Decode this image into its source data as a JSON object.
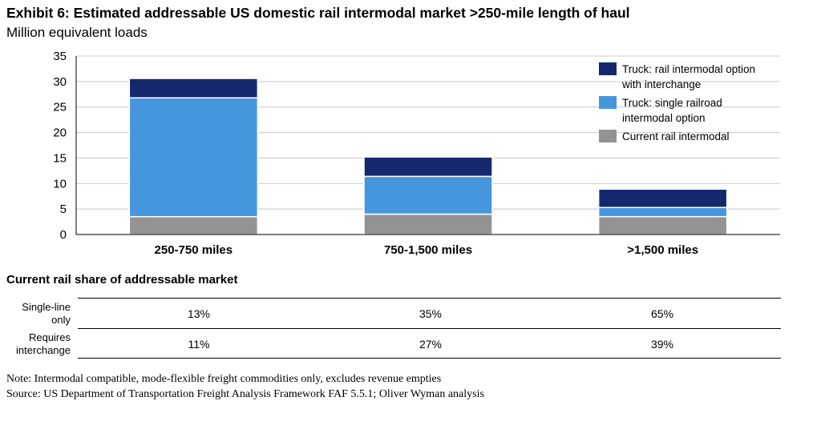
{
  "title": "Exhibit 6: Estimated addressable US domestic rail intermodal market >250-mile length of haul",
  "subtitle": "Million equivalent loads",
  "colors": {
    "truck_interchange": "#15286e",
    "truck_single": "#4596dc",
    "current_rail": "#939393",
    "grid": "#c8c8c8"
  },
  "chart_data": {
    "type": "bar",
    "stacked": true,
    "categories": [
      "250-750 miles",
      "750-1,500 miles",
      ">1,500 miles"
    ],
    "series": [
      {
        "name": "Current rail intermodal",
        "values": [
          3.5,
          4,
          3.5
        ],
        "color": "#939393"
      },
      {
        "name": "Truck: single railroad intermodal option",
        "values": [
          23.3,
          7.4,
          1.8
        ],
        "color": "#4596dc"
      },
      {
        "name": "Truck: rail intermodal option with interchange",
        "values": [
          3.8,
          3.8,
          3.6
        ],
        "color": "#15286e"
      }
    ],
    "ylim": [
      0,
      35
    ],
    "yticks": [
      "0",
      "5",
      "10",
      "15",
      "20",
      "25",
      "30",
      "35"
    ],
    "grid": true,
    "legend_position": "top-right",
    "legend": [
      {
        "lines": [
          "Truck: rail intermodal option",
          "with interchange"
        ],
        "color": "#15286e"
      },
      {
        "lines": [
          "Truck: single railroad",
          "intermodal option"
        ],
        "color": "#4596dc"
      },
      {
        "lines": [
          "Current rail intermodal"
        ],
        "color": "#939393"
      }
    ]
  },
  "share_table": {
    "heading": "Current rail share of addressable market",
    "rows": [
      {
        "label_lines": [
          "Single-line",
          "only"
        ],
        "values": [
          "13%",
          "35%",
          "65%"
        ]
      },
      {
        "label_lines": [
          "Requires",
          "interchange"
        ],
        "values": [
          "11%",
          "27%",
          "39%"
        ]
      }
    ]
  },
  "note": "Note: Intermodal compatible, mode-flexible freight commodities only, excludes revenue empties",
  "source": "Source: US Department of Transportation Freight Analysis Framework FAF 5.5.1; Oliver Wyman analysis"
}
